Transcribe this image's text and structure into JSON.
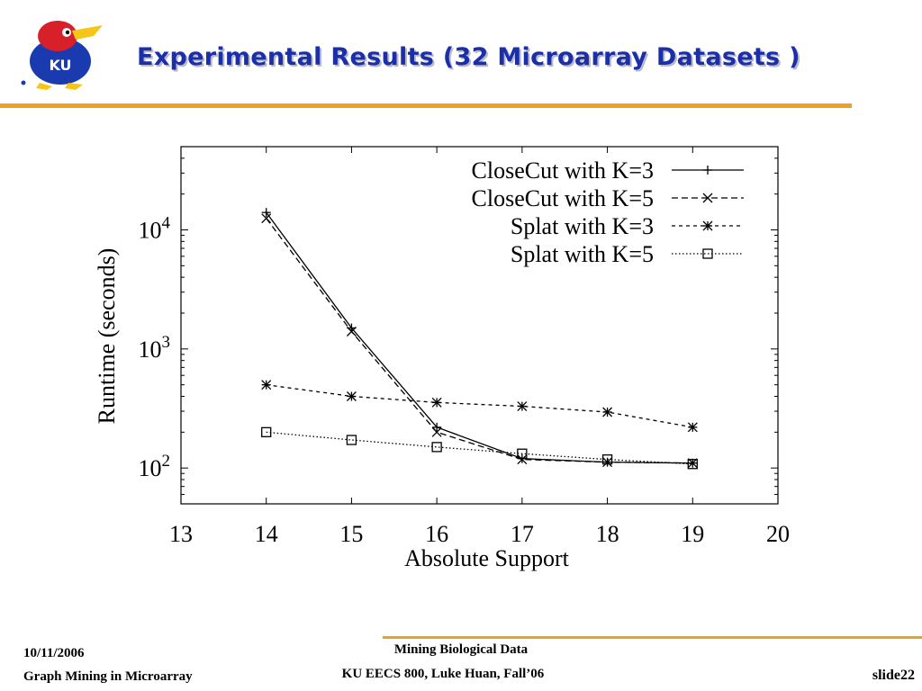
{
  "slide": {
    "title": "Experimental Results (32 Microarray Datasets )",
    "logo_text": "KU",
    "footer": {
      "date": "10/11/2006",
      "course_title": "Graph Mining in Microarray",
      "topic": "Mining Biological Data",
      "course_info": "KU EECS 800, Luke Huan, Fall’06",
      "slide_number": "slide22"
    }
  },
  "chart_data": {
    "type": "line",
    "xlabel": "Absolute Support",
    "ylabel": "Runtime (seconds)",
    "xlim": [
      13,
      20
    ],
    "ylim": [
      50,
      50000
    ],
    "yscale": "log",
    "x_ticks": [
      "13",
      "14",
      "15",
      "16",
      "17",
      "18",
      "19",
      "20"
    ],
    "y_ticks": [
      {
        "base": "10",
        "exp": "2",
        "value": 100
      },
      {
        "base": "10",
        "exp": "3",
        "value": 1000
      },
      {
        "base": "10",
        "exp": "4",
        "value": 10000
      }
    ],
    "legend_position": "top-right",
    "x": [
      14,
      15,
      16,
      17,
      18,
      19
    ],
    "series": [
      {
        "name": "CloseCut with K=3",
        "marker": "plus",
        "dash": "solid",
        "values": [
          14000,
          1500,
          220,
          120,
          112,
          110
        ]
      },
      {
        "name": "CloseCut with K=5",
        "marker": "cross",
        "dash": "dashed",
        "values": [
          12500,
          1400,
          200,
          118,
          112,
          110
        ]
      },
      {
        "name": "Splat with K=3",
        "marker": "star",
        "dash": "short-dashed",
        "values": [
          500,
          400,
          355,
          330,
          295,
          220
        ]
      },
      {
        "name": "Splat with K=5",
        "marker": "square",
        "dash": "dotted",
        "values": [
          200,
          172,
          150,
          132,
          118,
          108
        ]
      }
    ]
  }
}
